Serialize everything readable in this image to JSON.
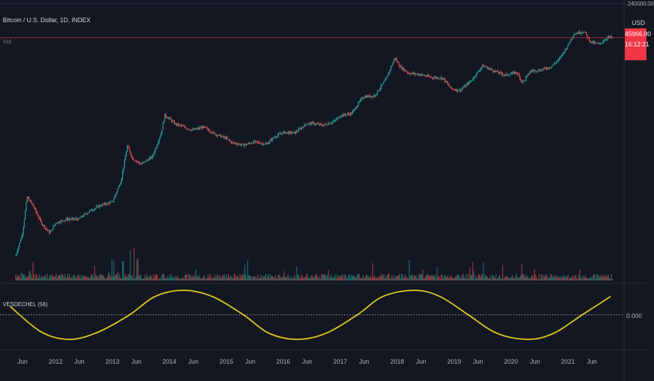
{
  "header": {
    "symbol_title": "Bitcoin / U.S. Dollar, 1D, INDEX",
    "volume_label": "Vol",
    "currency": "USD",
    "top_axis_tick": "240000.00"
  },
  "price_badge": {
    "price": "45966.00",
    "countdown": "16:12:21"
  },
  "oscillator": {
    "label": "VESDECHEL (56)",
    "zero_label": "0.000"
  },
  "colors": {
    "background": "#131722",
    "up": "#26a69a",
    "down": "#ef5350",
    "oscillator_line": "#d4c21f",
    "price_line": "#f23645",
    "axis_text": "#b2b5be"
  },
  "chart_data": [
    {
      "type": "line",
      "title": "Bitcoin / U.S. Dollar, 1D, INDEX",
      "scale": "log",
      "xlabel": "",
      "ylabel": "USD",
      "x_ticks": [
        "Jun",
        "2012",
        "Jun",
        "2013",
        "Jun",
        "2014",
        "Jun",
        "2015",
        "Jun",
        "2016",
        "Jun",
        "2017",
        "Jun",
        "2018",
        "Jun",
        "2019",
        "Jun",
        "2020",
        "Jun",
        "2021",
        "Jun"
      ],
      "x": [
        2011.3,
        2011.42,
        2011.5,
        2011.6,
        2011.75,
        2011.9,
        2012.0,
        2012.2,
        2012.4,
        2012.6,
        2012.8,
        2013.0,
        2013.15,
        2013.26,
        2013.35,
        2013.5,
        2013.7,
        2013.85,
        2013.92,
        2014.0,
        2014.1,
        2014.2,
        2014.4,
        2014.6,
        2014.8,
        2015.0,
        2015.1,
        2015.3,
        2015.5,
        2015.7,
        2015.85,
        2016.0,
        2016.2,
        2016.4,
        2016.5,
        2016.7,
        2016.9,
        2017.0,
        2017.2,
        2017.4,
        2017.6,
        2017.8,
        2017.96,
        2018.05,
        2018.2,
        2018.4,
        2018.6,
        2018.8,
        2018.95,
        2019.1,
        2019.3,
        2019.5,
        2019.7,
        2019.9,
        2020.1,
        2020.2,
        2020.35,
        2020.5,
        2020.7,
        2020.85,
        2021.0,
        2021.1,
        2021.28,
        2021.4,
        2021.55,
        2021.7,
        2021.78
      ],
      "values": [
        1,
        3,
        18,
        12,
        5,
        3,
        5,
        6,
        6,
        9,
        12,
        14,
        40,
        220,
        120,
        90,
        130,
        400,
        1000,
        850,
        650,
        600,
        480,
        560,
        400,
        320,
        260,
        230,
        270,
        240,
        350,
        430,
        420,
        650,
        680,
        610,
        750,
        990,
        1100,
        2500,
        2600,
        5800,
        17000,
        11000,
        8000,
        7500,
        6500,
        6300,
        3700,
        3400,
        5500,
        11500,
        9000,
        7200,
        8400,
        5000,
        9000,
        9200,
        10900,
        16000,
        32000,
        55000,
        63000,
        37000,
        33000,
        47000,
        46000
      ],
      "current_price": 45966.0
    },
    {
      "type": "bar",
      "title": "Vol",
      "description_values": "relative daily volume, noisy",
      "series": []
    },
    {
      "type": "line",
      "title": "VESDECHEL (56)",
      "x": [
        2011.2,
        2011.75,
        2012.25,
        2012.75,
        2013.3,
        2013.75,
        2014.25,
        2014.75,
        2015.3,
        2015.75,
        2016.25,
        2016.75,
        2017.3,
        2017.75,
        2018.3,
        2018.75,
        2019.25,
        2019.75,
        2020.3,
        2020.75,
        2021.25,
        2021.75
      ],
      "values": [
        0.35,
        -0.7,
        -1.0,
        -0.7,
        0.0,
        0.75,
        1.0,
        0.75,
        0.0,
        -0.75,
        -1.0,
        -0.75,
        0.0,
        0.75,
        1.0,
        0.75,
        0.0,
        -0.75,
        -1.0,
        -0.75,
        0.0,
        0.75
      ],
      "ylim": [
        -1.2,
        1.2
      ],
      "zero_line": 0.0
    }
  ]
}
